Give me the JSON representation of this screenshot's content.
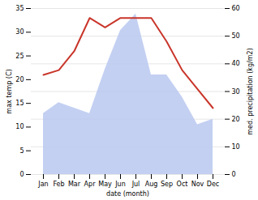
{
  "chart_data": {
    "type": "line",
    "categories": [
      "Jan",
      "Feb",
      "Mar",
      "Apr",
      "May",
      "Jun",
      "Jul",
      "Aug",
      "Sep",
      "Oct",
      "Nov",
      "Dec"
    ],
    "xlabel": "date (month)",
    "ylabel": "max temp (C)",
    "y2label": "med. precipitation (kg/m2)",
    "ylim": [
      0,
      35
    ],
    "yticks": [
      0,
      5,
      10,
      15,
      20,
      25,
      30,
      35
    ],
    "y2lim": [
      0,
      60
    ],
    "y2ticks": [
      0,
      10,
      20,
      30,
      40,
      50,
      60
    ],
    "grid": true,
    "series": [
      {
        "type": "area",
        "axis": "y2",
        "color": "#b8c8f0",
        "values": [
          22,
          26,
          24,
          22,
          38,
          52,
          58,
          36,
          36,
          28,
          18,
          20
        ]
      },
      {
        "type": "line",
        "color": "#c9352a",
        "values": [
          21,
          22,
          26,
          33,
          31,
          33,
          33,
          33,
          28,
          22,
          18,
          14
        ]
      }
    ]
  }
}
